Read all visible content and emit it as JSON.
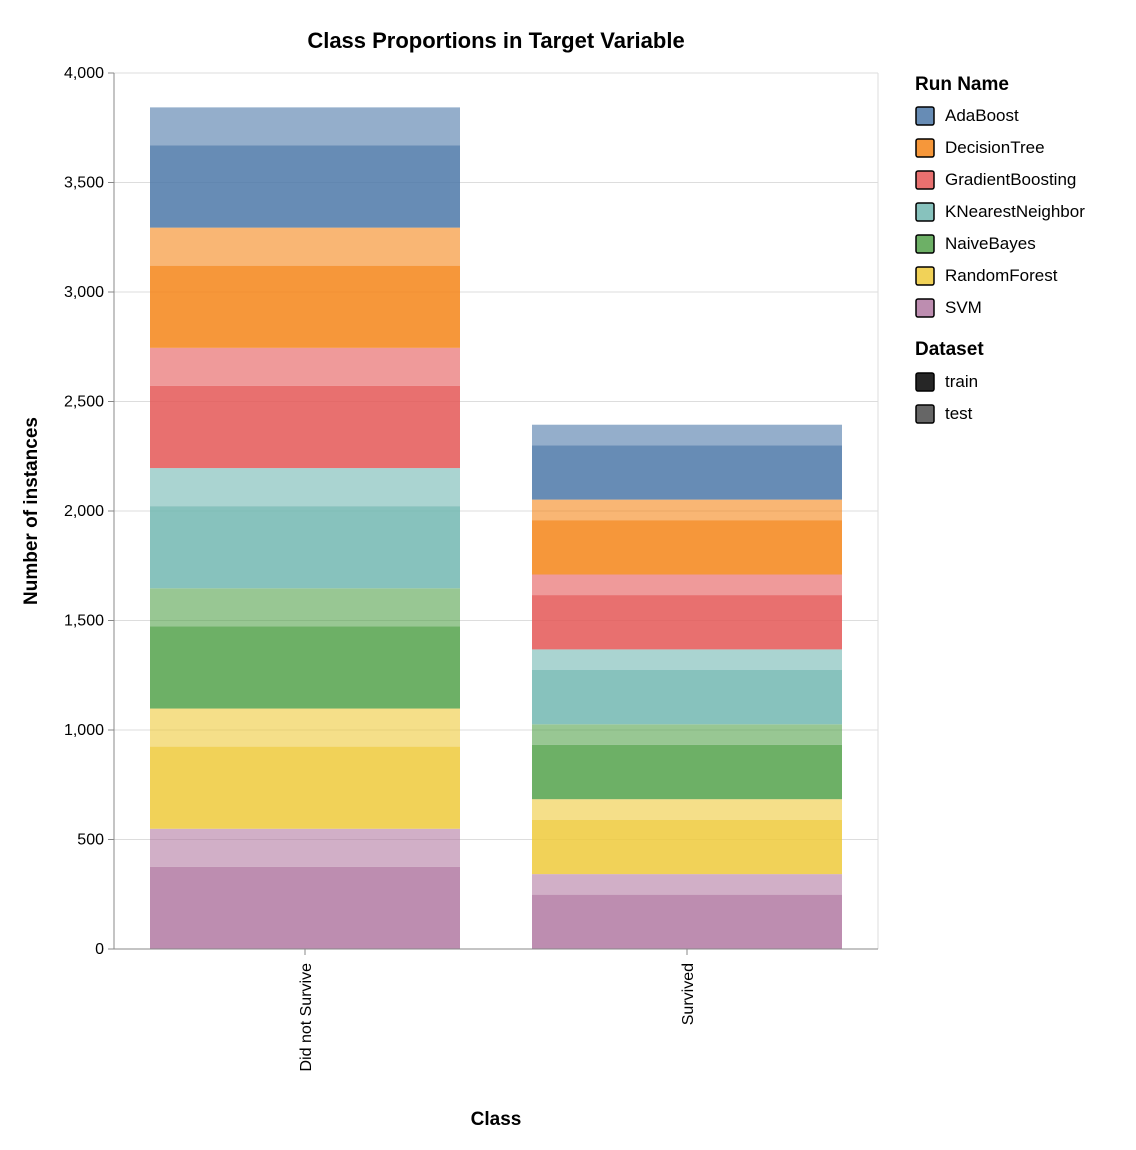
{
  "chart_data": {
    "type": "bar",
    "stacked": true,
    "title": "Class Proportions in Target Variable",
    "xlabel": "Class",
    "ylabel": "Number of instances",
    "categories": [
      "Did not Survive",
      "Survived"
    ],
    "ylim": [
      0,
      4000
    ],
    "yticks": [
      "0",
      "500",
      "1,000",
      "1,500",
      "2,000",
      "2,500",
      "3,000",
      "3,500",
      "4,000"
    ],
    "grid": true,
    "legend_placement": "right",
    "run_legend_title": "Run Name",
    "dataset_legend_title": "Dataset",
    "datasets": [
      {
        "name": "train",
        "opacity": 0.85
      },
      {
        "name": "test",
        "opacity": 0.6
      }
    ],
    "series": [
      {
        "name": "AdaBoost",
        "color": "#4c78a8",
        "train": [
          375,
          248
        ],
        "test": [
          174,
          94
        ]
      },
      {
        "name": "DecisionTree",
        "color": "#f58518",
        "train": [
          375,
          248
        ],
        "test": [
          174,
          94
        ]
      },
      {
        "name": "GradientBoosting",
        "color": "#e45756",
        "train": [
          375,
          248
        ],
        "test": [
          174,
          94
        ]
      },
      {
        "name": "KNearestNeighbor",
        "color": "#72b7b2",
        "train": [
          375,
          248
        ],
        "test": [
          174,
          94
        ]
      },
      {
        "name": "NaiveBayes",
        "color": "#54a24b",
        "train": [
          375,
          248
        ],
        "test": [
          174,
          94
        ]
      },
      {
        "name": "RandomForest",
        "color": "#eeca3b",
        "train": [
          375,
          248
        ],
        "test": [
          174,
          94
        ]
      },
      {
        "name": "SVM",
        "color": "#b279a2",
        "train": [
          375,
          248
        ],
        "test": [
          174,
          94
        ]
      }
    ]
  }
}
